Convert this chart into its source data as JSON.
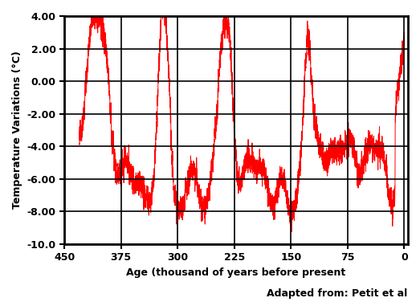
{
  "xlabel": "Age (thousand of years before present",
  "ylabel": "Temperature Variations (°C)",
  "attribution": "Adapted from: Petit et al",
  "line_color": "#ff0000",
  "line_width": 0.7,
  "xlim": [
    450,
    -5
  ],
  "ylim": [
    -10.0,
    4.0
  ],
  "xticks": [
    450,
    375,
    300,
    225,
    150,
    75,
    0
  ],
  "yticks": [
    -10.0,
    -8.0,
    -6.0,
    -4.0,
    -2.0,
    0.0,
    2.0,
    4.0
  ],
  "ytick_labels": [
    "-10.0",
    "-8.00",
    "-6.00",
    "-4.00",
    "-2.00",
    "0.00",
    "2.00",
    "4.00"
  ],
  "bg_color": "#ffffff",
  "grid_color": "#000000",
  "figsize": [
    5.23,
    3.76
  ],
  "dpi": 100
}
